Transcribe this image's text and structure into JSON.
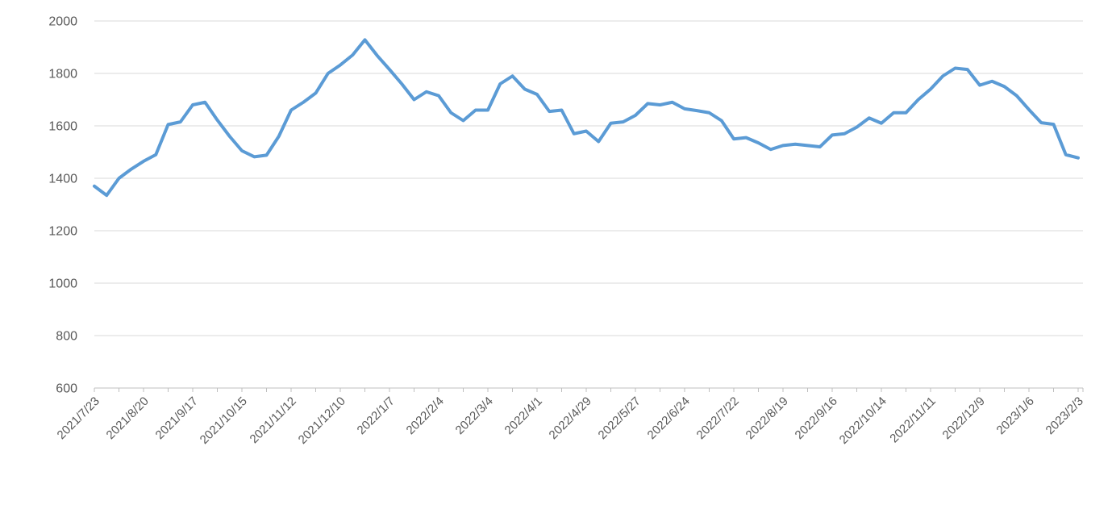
{
  "chart_data": {
    "type": "line",
    "title": "",
    "series_name": "",
    "legend": "none",
    "grid": "horizontal",
    "ylim": [
      600,
      2000
    ],
    "y_ticks": [
      600,
      800,
      1000,
      1200,
      1400,
      1600,
      1800,
      2000
    ],
    "x_tick_labels": [
      "2021/7/23",
      "2021/8/20",
      "2021/9/17",
      "2021/10/15",
      "2021/11/12",
      "2021/12/10",
      "2022/1/7",
      "2022/2/4",
      "2022/3/4",
      "2022/4/1",
      "2022/4/29",
      "2022/5/27",
      "2022/6/24",
      "2022/7/22",
      "2022/8/19",
      "2022/9/16",
      "2022/10/14",
      "2022/11/11",
      "2022/12/9",
      "2023/1/6",
      "2023/2/3"
    ],
    "x": [
      "2021/7/23",
      "2021/7/30",
      "2021/8/6",
      "2021/8/13",
      "2021/8/20",
      "2021/8/27",
      "2021/9/3",
      "2021/9/10",
      "2021/9/17",
      "2021/9/24",
      "2021/10/1",
      "2021/10/8",
      "2021/10/15",
      "2021/10/22",
      "2021/10/29",
      "2021/11/5",
      "2021/11/12",
      "2021/11/19",
      "2021/11/26",
      "2021/12/3",
      "2021/12/10",
      "2021/12/17",
      "2021/12/24",
      "2021/12/31",
      "2022/1/7",
      "2022/1/14",
      "2022/1/21",
      "2022/1/28",
      "2022/2/4",
      "2022/2/11",
      "2022/2/18",
      "2022/2/25",
      "2022/3/4",
      "2022/3/11",
      "2022/3/18",
      "2022/3/25",
      "2022/4/1",
      "2022/4/8",
      "2022/4/15",
      "2022/4/22",
      "2022/4/29",
      "2022/5/6",
      "2022/5/13",
      "2022/5/20",
      "2022/5/27",
      "2022/6/3",
      "2022/6/10",
      "2022/6/17",
      "2022/6/24",
      "2022/7/1",
      "2022/7/8",
      "2022/7/15",
      "2022/7/22",
      "2022/7/29",
      "2022/8/5",
      "2022/8/12",
      "2022/8/19",
      "2022/8/26",
      "2022/9/2",
      "2022/9/9",
      "2022/9/16",
      "2022/9/23",
      "2022/9/30",
      "2022/10/7",
      "2022/10/14",
      "2022/10/21",
      "2022/10/28",
      "2022/11/4",
      "2022/11/11",
      "2022/11/18",
      "2022/11/25",
      "2022/12/2",
      "2022/12/9",
      "2022/12/16",
      "2022/12/23",
      "2022/12/30",
      "2023/1/6",
      "2023/1/13",
      "2023/1/20",
      "2023/1/27",
      "2023/2/3"
    ],
    "values": [
      1370,
      1335,
      1400,
      1435,
      1465,
      1490,
      1605,
      1615,
      1680,
      1690,
      1622,
      1560,
      1505,
      1482,
      1488,
      1560,
      1660,
      1690,
      1725,
      1800,
      1832,
      1870,
      1928,
      1868,
      1815,
      1760,
      1700,
      1730,
      1715,
      1650,
      1620,
      1660,
      1660,
      1760,
      1790,
      1740,
      1720,
      1655,
      1660,
      1570,
      1580,
      1540,
      1610,
      1615,
      1640,
      1685,
      1680,
      1690,
      1665,
      1658,
      1650,
      1620,
      1550,
      1555,
      1535,
      1510,
      1525,
      1530,
      1525,
      1520,
      1565,
      1570,
      1595,
      1630,
      1610,
      1650,
      1650,
      1700,
      1740,
      1790,
      1820,
      1815,
      1755,
      1770,
      1750,
      1715,
      1662,
      1612,
      1606,
      1490,
      1478
    ],
    "line_color": "#5B9BD5",
    "gridline_color": "#D9D9D9",
    "axis_color": "#BFBFBF",
    "label_color": "#595959"
  }
}
